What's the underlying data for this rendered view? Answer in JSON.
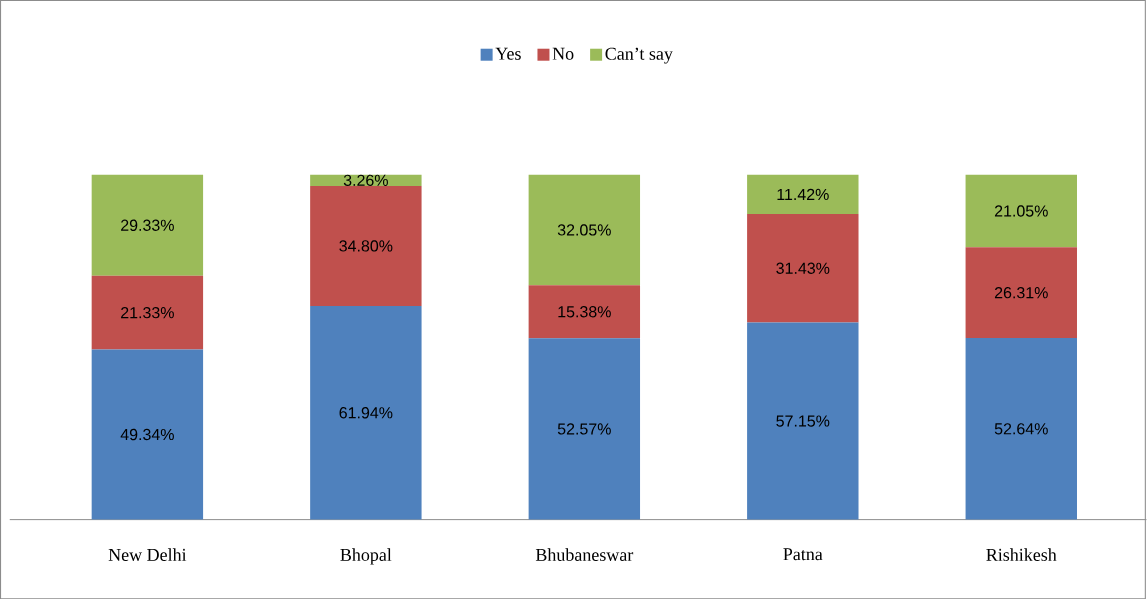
{
  "chart_data": {
    "type": "bar",
    "stacked": true,
    "legend": "top",
    "categories": [
      "New Delhi",
      "Bhopal",
      "Bhubaneswar",
      "Patna",
      "Rishikesh"
    ],
    "series": [
      {
        "name": "Yes",
        "color": "#4f81bd",
        "values": [
          49.34,
          61.94,
          52.57,
          57.15,
          52.64
        ],
        "value_labels": [
          "49.34%",
          "61.94%",
          "52.57%",
          "57.15%",
          "52.64%"
        ]
      },
      {
        "name": "No",
        "color": "#c0504d",
        "values": [
          21.33,
          34.8,
          15.38,
          31.43,
          26.31
        ],
        "value_labels": [
          "21.33%",
          "34.80%",
          "15.38%",
          "31.43%",
          "26.31%"
        ]
      },
      {
        "name": "Can’t say",
        "color": "#9bbb59",
        "values": [
          29.33,
          3.26,
          32.05,
          11.42,
          21.05
        ],
        "value_labels": [
          "29.33%",
          "3.26%",
          "32.05%",
          "11.42%",
          "21.05%"
        ]
      }
    ]
  }
}
